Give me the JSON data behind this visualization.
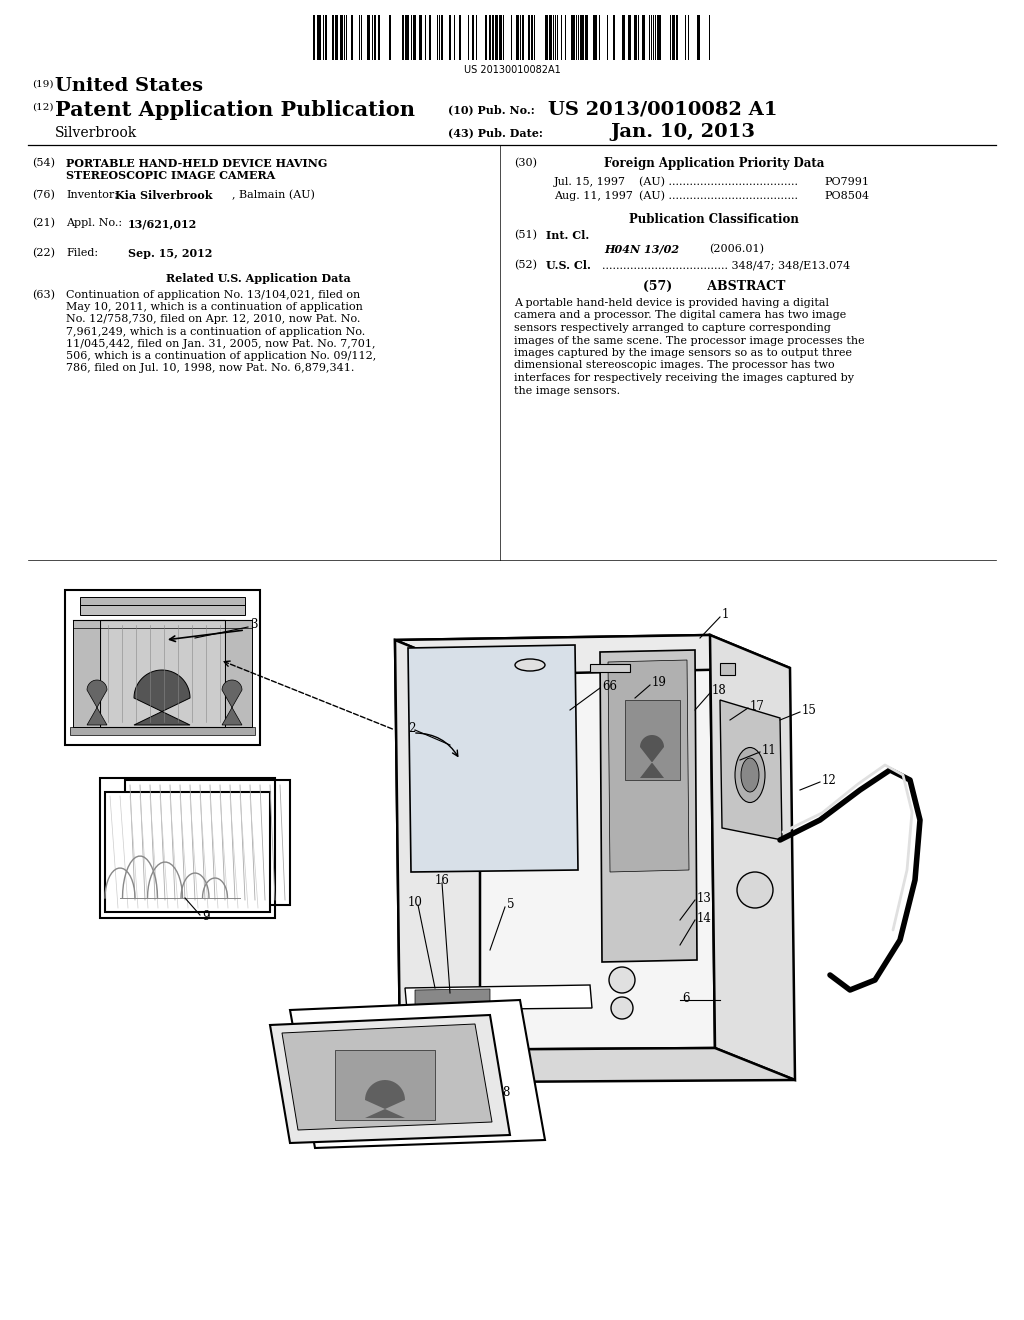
{
  "background_color": "#ffffff",
  "barcode_text": "US 20130010082A1",
  "header": {
    "country_label": "(19)",
    "country": "United States",
    "type_label": "(12)",
    "type": "Patent Application Publication",
    "pub_no_label": "(10) Pub. No.:",
    "pub_no": "US 2013/0010082 A1",
    "date_label": "(43) Pub. Date:",
    "date": "Jan. 10, 2013",
    "inventor_name": "Silverbrook"
  },
  "left_col": {
    "title_num": "(54)",
    "title_line1": "PORTABLE HAND-HELD DEVICE HAVING",
    "title_line2": "STEREOSCOPIC IMAGE CAMERA",
    "inventor_num": "(76)",
    "inventor_label": "Inventor:",
    "inventor": "Kia Silverbrook",
    "inventor_loc": ", Balmain (AU)",
    "appl_num": "(21)",
    "appl_label": "Appl. No.:",
    "appl_val": "13/621,012",
    "filed_num": "(22)",
    "filed_label": "Filed:",
    "filed_val": "Sep. 15, 2012",
    "related_header": "Related U.S. Application Data",
    "related_num": "(63)",
    "related_lines": [
      "Continuation of application No. 13/104,021, filed on",
      "May 10, 2011, which is a continuation of application",
      "No. 12/758,730, filed on Apr. 12, 2010, now Pat. No.",
      "7,961,249, which is a continuation of application No.",
      "11/045,442, filed on Jan. 31, 2005, now Pat. No. 7,701,",
      "506, which is a continuation of application No. 09/112,",
      "786, filed on Jul. 10, 1998, now Pat. No. 6,879,341."
    ]
  },
  "right_col": {
    "foreign_num": "(30)",
    "foreign_header": "Foreign Application Priority Data",
    "foreign_date1": "Jul. 15, 1997",
    "foreign_country1": "(AU) .....................................",
    "foreign_num1": "PO7991",
    "foreign_date2": "Aug. 11, 1997",
    "foreign_country2": "(AU) .....................................",
    "foreign_num2": "PO8504",
    "pub_class_header": "Publication Classification",
    "intcl_num": "(51)",
    "intcl_label": "Int. Cl.",
    "intcl_val": "H04N 13/02",
    "intcl_year": "(2006.01)",
    "uscl_num": "(52)",
    "uscl_label": "U.S. Cl.",
    "uscl_val": ".................................... 348/47; 348/E13.074",
    "abstract_num": "(57)",
    "abstract_header": "ABSTRACT",
    "abstract_lines": [
      "A portable hand-held device is provided having a digital",
      "camera and a processor. The digital camera has two image",
      "sensors respectively arranged to capture corresponding",
      "images of the same scene. The processor image processes the",
      "images captured by the image sensors so as to output three",
      "dimensional stereoscopic images. The processor has two",
      "interfaces for respectively receiving the images captured by",
      "the image sensors."
    ]
  }
}
